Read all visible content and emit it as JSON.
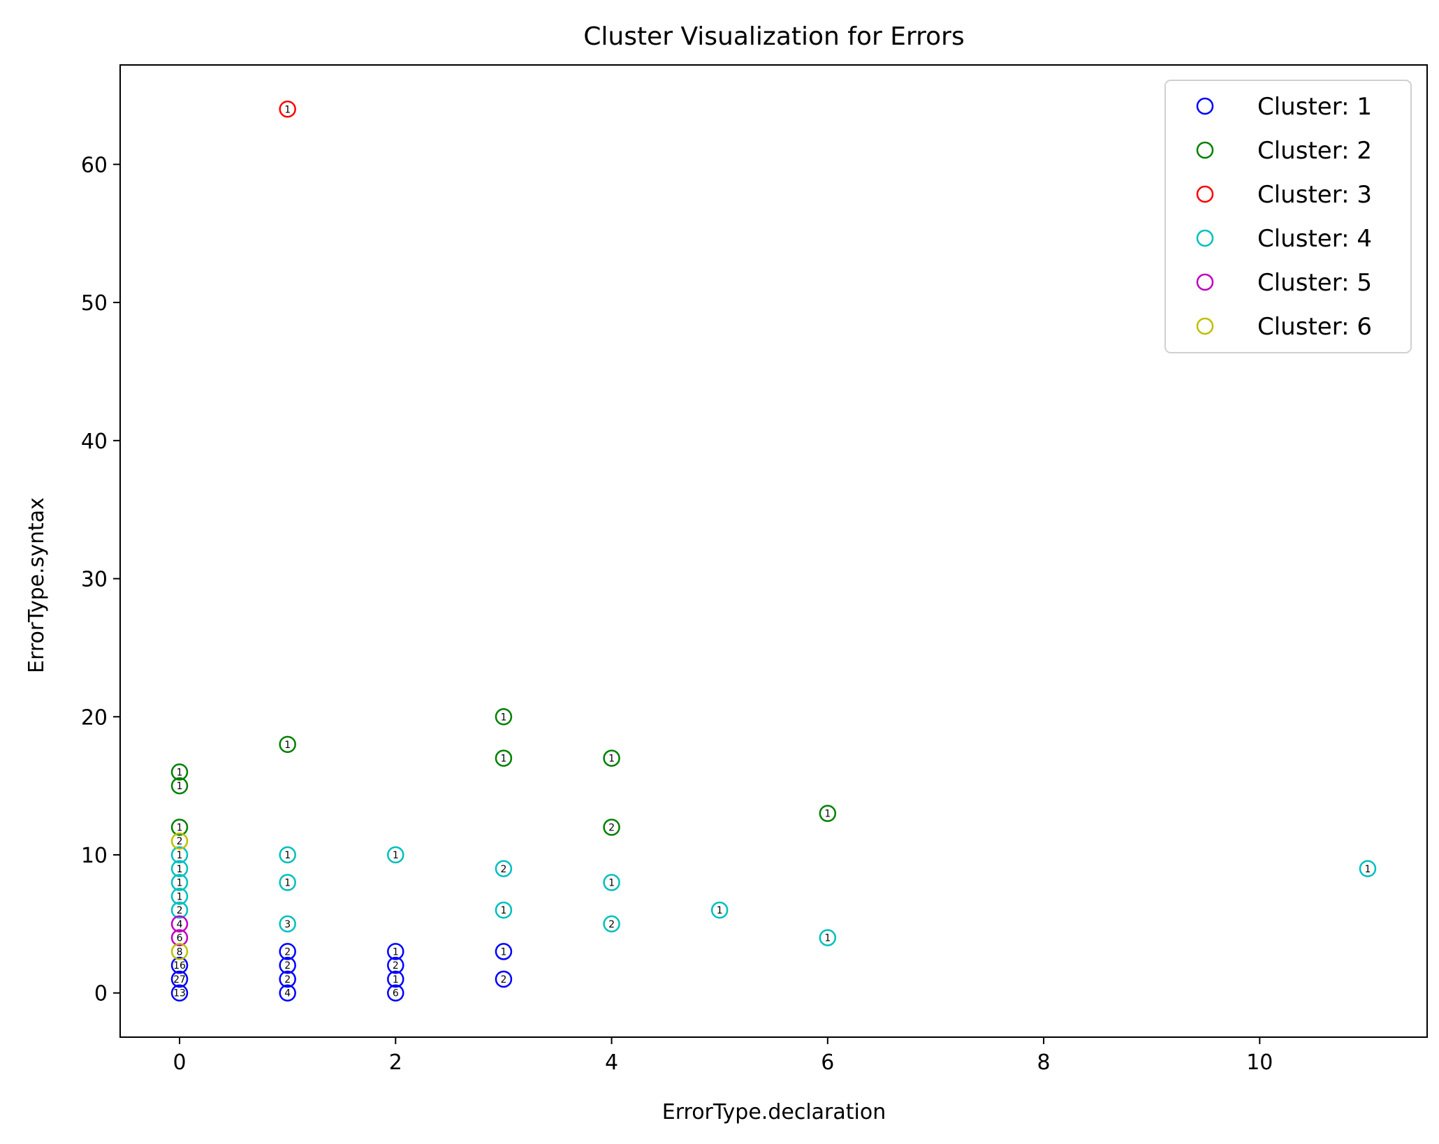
{
  "chart_data": {
    "type": "scatter",
    "title": "Cluster Visualization for Errors",
    "xlabel": "ErrorType.declaration",
    "ylabel": "ErrorType.syntax",
    "xlim": [
      -0.55,
      11.55
    ],
    "ylim": [
      -3.2,
      67.2
    ],
    "xticks": [
      0,
      2,
      4,
      6,
      8,
      10
    ],
    "yticks": [
      0,
      10,
      20,
      30,
      40,
      50,
      60
    ],
    "legend_position": "upper right",
    "grid": false,
    "series": [
      {
        "name": "Cluster: 1",
        "color": "#0000ff",
        "points": [
          {
            "x": 0,
            "y": 0,
            "label": "13"
          },
          {
            "x": 0,
            "y": 1,
            "label": "27"
          },
          {
            "x": 0,
            "y": 2,
            "label": "16"
          },
          {
            "x": 1,
            "y": 0,
            "label": "4"
          },
          {
            "x": 1,
            "y": 1,
            "label": "2"
          },
          {
            "x": 1,
            "y": 2,
            "label": "2"
          },
          {
            "x": 1,
            "y": 3,
            "label": "2"
          },
          {
            "x": 2,
            "y": 0,
            "label": "6"
          },
          {
            "x": 2,
            "y": 1,
            "label": "1"
          },
          {
            "x": 2,
            "y": 2,
            "label": "2"
          },
          {
            "x": 2,
            "y": 3,
            "label": "1"
          },
          {
            "x": 3,
            "y": 1,
            "label": "2"
          },
          {
            "x": 3,
            "y": 3,
            "label": "1"
          }
        ]
      },
      {
        "name": "Cluster: 2",
        "color": "#008000",
        "points": [
          {
            "x": 0,
            "y": 16,
            "label": "1"
          },
          {
            "x": 0,
            "y": 15,
            "label": "1"
          },
          {
            "x": 0,
            "y": 12,
            "label": "1"
          },
          {
            "x": 1,
            "y": 18,
            "label": "1"
          },
          {
            "x": 3,
            "y": 20,
            "label": "1"
          },
          {
            "x": 3,
            "y": 17,
            "label": "1"
          },
          {
            "x": 4,
            "y": 17,
            "label": "1"
          },
          {
            "x": 4,
            "y": 12,
            "label": "2"
          },
          {
            "x": 6,
            "y": 13,
            "label": "1"
          }
        ]
      },
      {
        "name": "Cluster: 3",
        "color": "#ff0000",
        "points": [
          {
            "x": 1,
            "y": 64,
            "label": "1"
          }
        ]
      },
      {
        "name": "Cluster: 4",
        "color": "#00bfbf",
        "points": [
          {
            "x": 0,
            "y": 10,
            "label": "1"
          },
          {
            "x": 0,
            "y": 9,
            "label": "1"
          },
          {
            "x": 0,
            "y": 8,
            "label": "1"
          },
          {
            "x": 0,
            "y": 7,
            "label": "1"
          },
          {
            "x": 0,
            "y": 6,
            "label": "2"
          },
          {
            "x": 1,
            "y": 10,
            "label": "1"
          },
          {
            "x": 1,
            "y": 8,
            "label": "1"
          },
          {
            "x": 1,
            "y": 5,
            "label": "3"
          },
          {
            "x": 2,
            "y": 10,
            "label": "1"
          },
          {
            "x": 3,
            "y": 9,
            "label": "2"
          },
          {
            "x": 3,
            "y": 6,
            "label": "1"
          },
          {
            "x": 4,
            "y": 8,
            "label": "1"
          },
          {
            "x": 4,
            "y": 5,
            "label": "2"
          },
          {
            "x": 5,
            "y": 6,
            "label": "1"
          },
          {
            "x": 6,
            "y": 4,
            "label": "1"
          },
          {
            "x": 11,
            "y": 9,
            "label": "1"
          }
        ]
      },
      {
        "name": "Cluster: 5",
        "color": "#bf00bf",
        "points": [
          {
            "x": 0,
            "y": 5,
            "label": "4"
          },
          {
            "x": 0,
            "y": 4,
            "label": "6"
          }
        ]
      },
      {
        "name": "Cluster: 6",
        "color": "#bfbf00",
        "points": [
          {
            "x": 0,
            "y": 11,
            "label": "2"
          },
          {
            "x": 0,
            "y": 3,
            "label": "8"
          }
        ]
      }
    ]
  }
}
